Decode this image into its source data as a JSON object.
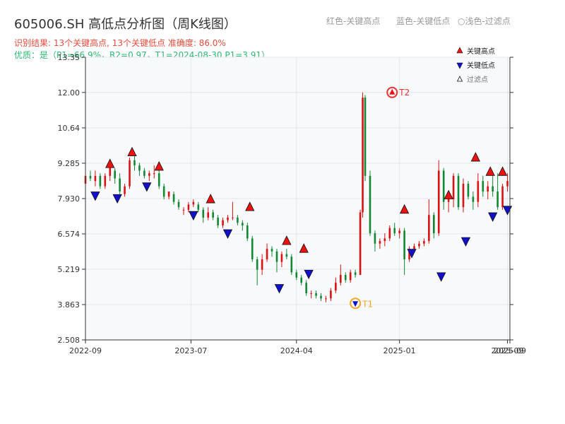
{
  "title": "605006.SH 高低点分析图（周K线图）",
  "subtitle_result": "识别结果: 13个关键高点, 13个关键低点  准确度: 86.0%",
  "subtitle_quality": "优质：是（P1=66.9%，R2=0.97，T1=2024-08-30 P1=3.91）",
  "header_legend": [
    "红色-关键高点",
    "蓝色-关键低点",
    "○浅色-过滤点"
  ],
  "colors": {
    "up": "#dd1111",
    "down": "#118833",
    "high_marker": "#ee1111",
    "low_marker": "#1111cc",
    "t_marker": "#f5a623",
    "t2_marker": "#ee3333",
    "plot_bg": "#f7f9fb",
    "grid": "#e3e7ec"
  },
  "chart_data": {
    "type": "candlestick",
    "title": "605006.SH 高低点分析图（周K线图）",
    "y_ticks": [
      "2.508",
      "3.863",
      "5.219",
      "6.574",
      "7.930",
      "9.285",
      "10.64",
      "12.00",
      "13.35"
    ],
    "ylim": [
      2.508,
      13.35
    ],
    "x_ticks": [
      {
        "label": "2022-09",
        "week": 0
      },
      {
        "label": "2023-07",
        "week": 43
      },
      {
        "label": "2024-04",
        "week": 86
      },
      {
        "label": "2025-01",
        "week": 128
      },
      {
        "label": "2025-09",
        "week": 172
      },
      {
        "label": "2025-09",
        "week": 173
      }
    ],
    "x_range_weeks": [
      0,
      173
    ],
    "grid": true,
    "candles": [
      [
        0,
        8.5,
        9.0,
        8.2,
        8.8
      ],
      [
        2,
        8.8,
        9.0,
        8.6,
        8.7
      ],
      [
        4,
        8.6,
        9.0,
        8.4,
        8.8
      ],
      [
        6,
        8.8,
        8.9,
        8.3,
        8.4
      ],
      [
        8,
        8.4,
        8.9,
        8.3,
        8.8
      ],
      [
        10,
        8.8,
        9.2,
        8.6,
        9.1
      ],
      [
        12,
        9.0,
        9.1,
        8.5,
        8.7
      ],
      [
        14,
        8.7,
        8.9,
        8.1,
        8.2
      ],
      [
        16,
        8.1,
        8.5,
        8.0,
        8.4
      ],
      [
        18,
        8.4,
        9.5,
        8.3,
        9.4
      ],
      [
        20,
        9.4,
        9.6,
        9.0,
        9.2
      ],
      [
        22,
        9.2,
        9.3,
        8.8,
        9.0
      ],
      [
        24,
        9.0,
        9.1,
        8.7,
        8.8
      ],
      [
        26,
        8.8,
        9.0,
        8.6,
        8.9
      ],
      [
        28,
        8.9,
        9.2,
        8.7,
        8.9
      ],
      [
        30,
        8.9,
        9.1,
        8.3,
        8.4
      ],
      [
        32,
        8.4,
        8.5,
        7.9,
        8.0
      ],
      [
        34,
        8.0,
        8.2,
        7.9,
        8.2
      ],
      [
        36,
        8.1,
        8.2,
        7.7,
        7.8
      ],
      [
        38,
        7.8,
        7.9,
        7.5,
        7.6
      ],
      [
        40,
        7.5,
        7.6,
        7.3,
        7.5
      ],
      [
        42,
        7.5,
        7.8,
        7.4,
        7.7
      ],
      [
        44,
        7.7,
        7.9,
        7.6,
        7.8
      ],
      [
        46,
        7.7,
        7.8,
        7.4,
        7.5
      ],
      [
        48,
        7.5,
        7.6,
        7.0,
        7.2
      ],
      [
        50,
        7.2,
        7.6,
        7.1,
        7.4
      ],
      [
        52,
        7.4,
        7.5,
        7.1,
        7.2
      ],
      [
        54,
        7.2,
        7.3,
        6.8,
        6.9
      ],
      [
        56,
        6.9,
        7.2,
        6.8,
        7.1
      ],
      [
        58,
        7.1,
        7.3,
        7.0,
        7.2
      ],
      [
        60,
        7.2,
        7.8,
        7.1,
        7.2
      ],
      [
        62,
        7.2,
        7.3,
        6.9,
        7.0
      ],
      [
        64,
        7.0,
        7.1,
        6.7,
        6.9
      ],
      [
        66,
        6.9,
        7.0,
        6.3,
        6.4
      ],
      [
        68,
        6.4,
        6.5,
        5.5,
        5.6
      ],
      [
        70,
        5.6,
        5.7,
        4.6,
        5.2
      ],
      [
        72,
        5.2,
        5.8,
        5.0,
        5.6
      ],
      [
        74,
        5.6,
        6.2,
        5.5,
        6.0
      ],
      [
        76,
        6.0,
        6.1,
        5.7,
        5.9
      ],
      [
        78,
        5.9,
        6.0,
        5.1,
        5.5
      ],
      [
        80,
        5.5,
        5.9,
        5.3,
        5.8
      ],
      [
        82,
        5.8,
        6.0,
        5.6,
        5.7
      ],
      [
        84,
        5.7,
        5.8,
        5.0,
        5.1
      ],
      [
        86,
        5.1,
        5.2,
        4.8,
        4.9
      ],
      [
        88,
        4.9,
        5.0,
        4.6,
        4.7
      ],
      [
        90,
        4.7,
        4.8,
        4.2,
        4.3
      ],
      [
        92,
        4.3,
        4.4,
        4.1,
        4.3
      ],
      [
        94,
        4.3,
        4.4,
        4.1,
        4.2
      ],
      [
        96,
        4.2,
        4.3,
        4.0,
        4.1
      ],
      [
        98,
        4.1,
        4.2,
        3.95,
        4.1
      ],
      [
        100,
        4.1,
        4.5,
        4.0,
        4.4
      ],
      [
        102,
        4.4,
        4.9,
        4.3,
        4.7
      ],
      [
        104,
        4.7,
        5.4,
        4.6,
        5.0
      ],
      [
        106,
        5.0,
        5.1,
        4.7,
        4.8
      ],
      [
        108,
        4.8,
        5.2,
        4.7,
        5.1
      ],
      [
        110,
        5.1,
        5.2,
        4.9,
        5.0
      ],
      [
        112,
        5.0,
        7.5,
        5.0,
        7.4
      ],
      [
        113,
        7.4,
        12.0,
        7.2,
        11.8
      ],
      [
        114,
        11.8,
        11.9,
        8.6,
        8.8
      ],
      [
        116,
        8.8,
        9.0,
        6.5,
        6.6
      ],
      [
        118,
        6.6,
        6.7,
        5.9,
        6.2
      ],
      [
        120,
        6.2,
        6.4,
        6.0,
        6.3
      ],
      [
        122,
        6.3,
        6.6,
        6.1,
        6.4
      ],
      [
        124,
        6.4,
        6.9,
        6.3,
        6.8
      ],
      [
        126,
        6.8,
        7.0,
        6.5,
        6.6
      ],
      [
        128,
        6.6,
        6.8,
        6.4,
        6.7
      ],
      [
        130,
        6.7,
        6.8,
        5.0,
        5.6
      ],
      [
        132,
        5.6,
        6.1,
        5.5,
        6.0
      ],
      [
        134,
        6.0,
        6.2,
        5.9,
        6.1
      ],
      [
        136,
        6.1,
        6.3,
        6.0,
        6.2
      ],
      [
        138,
        6.2,
        6.4,
        6.1,
        6.3
      ],
      [
        140,
        6.3,
        7.9,
        6.2,
        7.3
      ],
      [
        142,
        7.3,
        7.4,
        6.4,
        6.6
      ],
      [
        144,
        6.6,
        9.4,
        6.5,
        9.0
      ],
      [
        146,
        9.0,
        9.1,
        7.5,
        7.8
      ],
      [
        148,
        7.8,
        8.2,
        7.4,
        7.9
      ],
      [
        150,
        7.9,
        8.9,
        7.6,
        8.8
      ],
      [
        152,
        8.8,
        8.9,
        7.5,
        7.6
      ],
      [
        154,
        7.6,
        8.7,
        7.4,
        8.5
      ],
      [
        156,
        8.5,
        8.6,
        7.9,
        8.0
      ],
      [
        158,
        8.0,
        8.2,
        7.5,
        7.8
      ],
      [
        160,
        7.8,
        8.9,
        7.6,
        8.6
      ],
      [
        162,
        8.6,
        8.8,
        8.0,
        8.2
      ],
      [
        164,
        8.2,
        8.6,
        7.9,
        8.4
      ],
      [
        166,
        8.4,
        8.8,
        8.0,
        8.2
      ],
      [
        168,
        8.2,
        8.9,
        7.5,
        7.6
      ],
      [
        170,
        7.6,
        8.5,
        7.5,
        8.4
      ],
      [
        172,
        8.4,
        8.9,
        8.2,
        8.6
      ]
    ],
    "key_highs": [
      {
        "week": 10,
        "price": 9.25
      },
      {
        "week": 19,
        "price": 9.7
      },
      {
        "week": 30,
        "price": 9.15
      },
      {
        "week": 51,
        "price": 7.9
      },
      {
        "week": 67,
        "price": 7.6
      },
      {
        "week": 82,
        "price": 6.3
      },
      {
        "week": 89,
        "price": 6.0
      },
      {
        "week": 130,
        "price": 7.5
      },
      {
        "week": 148,
        "price": 8.05
      },
      {
        "week": 159,
        "price": 9.5
      },
      {
        "week": 165,
        "price": 8.95
      },
      {
        "week": 170,
        "price": 8.95
      }
    ],
    "key_lows": [
      {
        "week": 4,
        "price": 8.05
      },
      {
        "week": 13,
        "price": 7.95
      },
      {
        "week": 25,
        "price": 8.4
      },
      {
        "week": 44,
        "price": 7.3
      },
      {
        "week": 58,
        "price": 6.6
      },
      {
        "week": 79,
        "price": 4.5
      },
      {
        "week": 91,
        "price": 5.05
      },
      {
        "week": 133,
        "price": 5.85
      },
      {
        "week": 145,
        "price": 4.95
      },
      {
        "week": 155,
        "price": 6.3
      },
      {
        "week": 166,
        "price": 7.25
      },
      {
        "week": 172,
        "price": 7.5
      }
    ],
    "T1": {
      "label": "T1",
      "week": 110,
      "price": 3.91
    },
    "T2": {
      "label": "T2",
      "week": 125,
      "price": 12.0
    },
    "legend": {
      "placement": "top-right",
      "entries": [
        {
          "label": "关键高点",
          "marker": "triangle-up",
          "color": "#ee1111"
        },
        {
          "label": "关键低点",
          "marker": "triangle-down",
          "color": "#1111cc"
        },
        {
          "label": "过滤点",
          "marker": "triangle-up-outline",
          "color": "#999999"
        }
      ]
    }
  }
}
